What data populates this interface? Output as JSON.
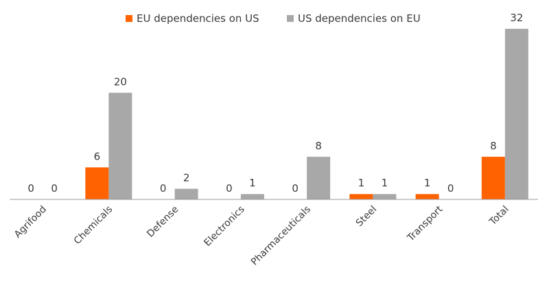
{
  "chart_data": {
    "type": "bar",
    "title": "",
    "xlabel": "",
    "ylabel": "",
    "categories": [
      "Agrifood",
      "Chemicals",
      "Defense",
      "Electronics",
      "Pharmaceuticals",
      "Steel",
      "Transport",
      "Total"
    ],
    "series": [
      {
        "name": "EU dependencies on US",
        "color": "#ff6200",
        "values": [
          0,
          6,
          0,
          0,
          0,
          1,
          1,
          8
        ]
      },
      {
        "name": "US dependencies on EU",
        "color": "#a8a8a8",
        "values": [
          0,
          20,
          2,
          1,
          8,
          1,
          0,
          32
        ]
      }
    ],
    "ylim": [
      0,
      32
    ],
    "grid": false,
    "legend_position": "top-center"
  }
}
